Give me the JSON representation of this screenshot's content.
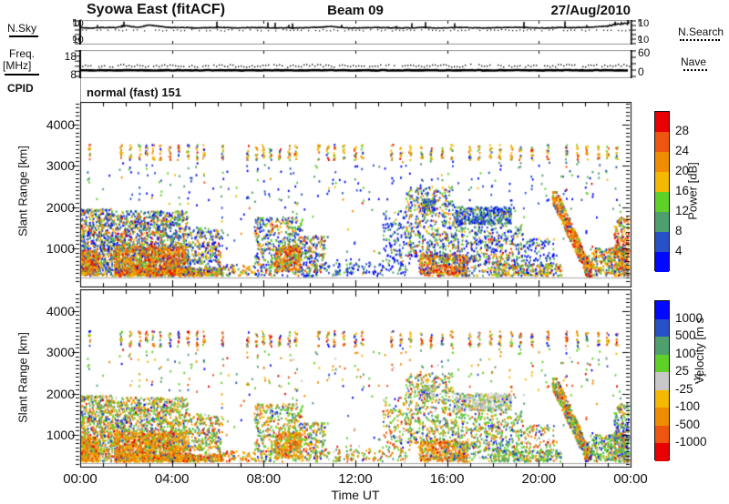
{
  "header": {
    "title": "Syowa East (fitACF)",
    "beam": "Beam 09",
    "date": "27/Aug/2010"
  },
  "left_labels": {
    "noise": "N.Sky",
    "freq_line1": "Freq.",
    "freq_line2": "[MHz]",
    "cpid": "CPID"
  },
  "right_labels": {
    "noise": "N.Search",
    "freq": "Nave"
  },
  "cpid_value": "normal (fast) 151",
  "axes": {
    "x": {
      "label": "Time UT",
      "major_hours": [
        0,
        4,
        8,
        12,
        16,
        20,
        24
      ],
      "major_labels": [
        "00:00",
        "04:00",
        "08:00",
        "12:00",
        "16:00",
        "20:00",
        "00:00"
      ],
      "minor_step_hours": 1
    },
    "range": {
      "label": "Slant Range [km]",
      "ticks": [
        1000,
        2000,
        3000,
        4000
      ],
      "tick_labels": [
        "1000",
        "2000",
        "3000",
        "4000"
      ],
      "min": 230,
      "max": 4540,
      "minor_step": 100
    },
    "noise_y": {
      "base": "10",
      "exp_top": "5",
      "exp_bottom": "0"
    },
    "freq_y": {
      "left_top": "18",
      "left_bottom": "8",
      "right_top": "60",
      "right_bottom": "0"
    }
  },
  "colorbars": {
    "power": {
      "title": "Power [dB]",
      "colors_top_to_bottom": [
        "#e80000",
        "#ee5511",
        "#f08c00",
        "#f5b800",
        "#5fd028",
        "#4f9e6e",
        "#2850c8",
        "#0008ff"
      ],
      "boundary_labels": [
        "28",
        "24",
        "20",
        "16",
        "12",
        "8",
        "4"
      ]
    },
    "velocity": {
      "title_prefix": "Velocity [m s",
      "title_sup": "-1",
      "title_suffix": "]",
      "colors_top_to_bottom": [
        "#0008ff",
        "#2850c8",
        "#4f9e6e",
        "#5fd028",
        "#c8c8c8",
        "#f5b800",
        "#f08c00",
        "#ee5511",
        "#e80000"
      ],
      "boundary_labels": [
        "1000",
        "500",
        "100",
        "25",
        "-25",
        "-100",
        "-500",
        "-1000"
      ]
    }
  },
  "chart_data": [
    {
      "id": "nsky",
      "type": "line",
      "panel": "noise",
      "label": "N.Sky",
      "style": "solid",
      "y_log10_range": [
        0,
        5
      ],
      "x_hours_step": 0.5,
      "values": [
        3.5,
        3.45,
        3.55,
        3.5,
        3.9,
        3.55,
        4.1,
        3.75,
        3.5,
        3.55,
        3.45,
        3.5,
        3.6,
        3.5,
        3.45,
        3.55,
        3.5,
        3.45,
        3.5,
        3.45,
        3.55,
        3.6,
        3.8,
        3.5,
        3.45,
        3.5,
        3.55,
        3.5,
        3.45,
        3.5,
        3.55,
        3.45,
        3.5,
        3.55,
        3.5,
        3.45,
        3.5,
        3.55,
        3.6,
        3.5,
        3.45,
        3.5,
        3.55,
        3.5,
        3.6,
        3.7,
        3.9,
        4.35,
        4.6
      ]
    },
    {
      "id": "nsearch",
      "type": "line",
      "panel": "noise",
      "label": "N.Search",
      "style": "dotted",
      "y_log10_range": [
        0,
        5
      ],
      "level": 3.05
    },
    {
      "id": "freq",
      "type": "line",
      "panel": "freq",
      "label": "Freq. [MHz]",
      "style": "solid",
      "y_range": [
        8,
        18
      ],
      "level": 10.4
    },
    {
      "id": "nave",
      "type": "line",
      "panel": "freq",
      "label": "Nave",
      "style": "dotted",
      "y_range": [
        0,
        60
      ],
      "x_hours_step": 0.5,
      "values": [
        26,
        27,
        25,
        26,
        28,
        26,
        25,
        27,
        26,
        26,
        25,
        28,
        26,
        27,
        25,
        26,
        26,
        27,
        25,
        26,
        28,
        26,
        25,
        27,
        26,
        25,
        27,
        26,
        28,
        25,
        26,
        27,
        26,
        25,
        28,
        26,
        27,
        25,
        26,
        26,
        27,
        25,
        28,
        26,
        25,
        27,
        26,
        28,
        26
      ]
    },
    {
      "id": "power",
      "type": "scatter",
      "panel": "power",
      "title": "Power [dB]",
      "x_range_hours": [
        0,
        24
      ],
      "range_km": [
        230,
        4540
      ],
      "thresholds": [
        4,
        8,
        12,
        16,
        20,
        24,
        28
      ],
      "palette_low_to_high": [
        "#0008ff",
        "#2850c8",
        "#4f9e6e",
        "#5fd028",
        "#f5b800",
        "#f08c00",
        "#ee5511",
        "#e80000"
      ],
      "weight_presets": {
        "pmix": [
          0.16,
          0.18,
          0.2,
          0.14,
          0.12,
          0.1,
          0.06,
          0.04
        ],
        "pcold": [
          0.3,
          0.35,
          0.2,
          0.1,
          0.03,
          0.02,
          0.0,
          0.0
        ],
        "phot": [
          0.02,
          0.05,
          0.07,
          0.09,
          0.18,
          0.24,
          0.21,
          0.14
        ],
        "pwarm": [
          0.06,
          0.09,
          0.13,
          0.15,
          0.24,
          0.19,
          0.09,
          0.05
        ],
        "pstrip": [
          0.05,
          0.08,
          0.06,
          0.1,
          0.36,
          0.2,
          0.09,
          0.06
        ],
        "pspeck": [
          0.3,
          0.28,
          0.2,
          0.12,
          0.05,
          0.03,
          0.01,
          0.01
        ]
      },
      "regions": [
        {
          "t": [
            0.0,
            1.4
          ],
          "r": [
            330,
            1950
          ],
          "n": 650,
          "pw": "pmix",
          "vw": "vmix"
        },
        {
          "t": [
            0.0,
            0.8
          ],
          "r": [
            330,
            950
          ],
          "n": 280,
          "pw": "phot",
          "vw": "vneg"
        },
        {
          "t": [
            1.4,
            4.7
          ],
          "r": [
            330,
            1900
          ],
          "n": 1350,
          "pw": "pmix",
          "vw": "vmix"
        },
        {
          "t": [
            1.5,
            4.6
          ],
          "r": [
            330,
            1050
          ],
          "n": 850,
          "pw": "phot",
          "vw": "vneg"
        },
        {
          "t": [
            1.5,
            4.8
          ],
          "r": [
            330,
            520
          ],
          "n": 420,
          "pw": "phot",
          "vw": "vneg"
        },
        {
          "t": [
            4.7,
            6.2
          ],
          "r": [
            330,
            1500
          ],
          "n": 300,
          "pw": "pmix",
          "vw": "vmix"
        },
        {
          "t": [
            4.7,
            6.2
          ],
          "r": [
            330,
            520
          ],
          "n": 160,
          "pw": "pwarm",
          "vw": "vneg"
        },
        {
          "t": [
            6.2,
            7.6
          ],
          "r": [
            330,
            600
          ],
          "n": 60,
          "pw": "pwarm",
          "vw": "vneg"
        },
        {
          "t": [
            7.6,
            9.7
          ],
          "r": [
            330,
            1750
          ],
          "n": 480,
          "pw": "pmix",
          "vw": "vmix"
        },
        {
          "t": [
            8.5,
            9.6
          ],
          "r": [
            430,
            1050
          ],
          "n": 260,
          "pw": "phot",
          "vw": "vneg"
        },
        {
          "t": [
            9.7,
            10.7
          ],
          "r": [
            330,
            1300
          ],
          "n": 200,
          "pw": "pmix",
          "vw": "vmix"
        },
        {
          "t": [
            10.7,
            13.2
          ],
          "r": [
            330,
            650
          ],
          "n": 90,
          "pw": "pspeck",
          "vw": "vspeck"
        },
        {
          "t": [
            13.2,
            14.2
          ],
          "r": [
            350,
            1900
          ],
          "n": 110,
          "pw": "pcold",
          "vw": "vspeck"
        },
        {
          "t": [
            14.2,
            16.3
          ],
          "r": [
            800,
            2500
          ],
          "n": 420,
          "pw": "pmix",
          "vw": "vmix"
        },
        {
          "t": [
            14.8,
            16.9
          ],
          "r": [
            330,
            850
          ],
          "n": 430,
          "pw": "phot",
          "vw": "vneg"
        },
        {
          "t": [
            16.3,
            18.8
          ],
          "r": [
            1580,
            2000
          ],
          "n": 400,
          "pw": "pcold",
          "vw": "vgrey"
        },
        {
          "t": [
            14.9,
            15.5
          ],
          "r": [
            1900,
            2180
          ],
          "n": 70,
          "pw": "pcold",
          "vw": "vgrey"
        },
        {
          "t": [
            16.3,
            19.3
          ],
          "r": [
            330,
            1550
          ],
          "n": 400,
          "pw": "pmix",
          "vw": "vpos"
        },
        {
          "t": [
            18.0,
            21.0
          ],
          "r": [
            330,
            620
          ],
          "n": 220,
          "pw": "pwarm",
          "vw": "vpos"
        },
        {
          "t": [
            19.3,
            20.7
          ],
          "r": [
            330,
            1250
          ],
          "n": 110,
          "pw": "pspeck",
          "vw": "vspeck"
        },
        {
          "t": [
            20.6,
            22.3
          ],
          "r": [
            330,
            2350
          ],
          "n": 520,
          "pw": "phot",
          "vw": "vdiag",
          "diag": true,
          "spread": 260
        },
        {
          "t": [
            22.3,
            24.0
          ],
          "r": [
            330,
            1000
          ],
          "n": 300,
          "pw": "pwarm",
          "vw": "vpos"
        },
        {
          "t": [
            23.3,
            24.0
          ],
          "r": [
            330,
            1750
          ],
          "n": 260,
          "pw": "phot",
          "vw": "vcold"
        },
        {
          "t": [
            0.0,
            24.0
          ],
          "r": [
            350,
            3050
          ],
          "n": 260,
          "pw": "pspeck",
          "vw": "vspeck"
        },
        {
          "t": [
            13.5,
            18.5
          ],
          "r": [
            600,
            1600
          ],
          "n": 150,
          "pw": "pcold",
          "vw": "vspeck"
        }
      ],
      "far_range_strips": {
        "times": [
          0.4,
          1.8,
          2.2,
          2.6,
          2.9,
          3.2,
          3.5,
          3.9,
          4.3,
          4.7,
          5.1,
          5.4,
          6.2,
          7.3,
          7.7,
          8.0,
          8.3,
          8.7,
          9.1,
          9.4,
          10.4,
          10.8,
          11.1,
          11.5,
          12.0,
          12.3,
          13.6,
          14.0,
          14.4,
          14.9,
          15.3,
          15.8,
          16.2,
          17.0,
          17.4,
          17.9,
          18.3,
          18.8,
          19.2,
          19.7,
          20.4,
          21.2,
          21.7,
          22.1,
          22.6,
          23.0,
          23.4
        ],
        "r": [
          3130,
          3500
        ],
        "n": 11,
        "half_width_h": 0.05,
        "tail_n": 3,
        "tail_r": [
          2050,
          3100
        ],
        "pw": "pstrip",
        "vw": "vstrip"
      }
    },
    {
      "id": "velocity",
      "type": "scatter",
      "panel": "velocity",
      "title_unit": "m s-1",
      "x_range_hours": [
        0,
        24
      ],
      "range_km": [
        230,
        4540
      ],
      "thresholds": [
        -1000,
        -500,
        -100,
        -25,
        25,
        100,
        500,
        1000
      ],
      "palette_neg_to_pos": [
        "#e80000",
        "#ee5511",
        "#f08c00",
        "#f5b800",
        "#c8c8c8",
        "#5fd028",
        "#4f9e6e",
        "#2850c8",
        "#0008ff"
      ],
      "regions_ref": "power",
      "weight_presets": {
        "vmix": [
          0.03,
          0.08,
          0.2,
          0.12,
          0.06,
          0.25,
          0.15,
          0.08,
          0.03
        ],
        "vneg": [
          0.08,
          0.15,
          0.38,
          0.2,
          0.04,
          0.08,
          0.04,
          0.02,
          0.01
        ],
        "vpos": [
          0.01,
          0.03,
          0.08,
          0.08,
          0.06,
          0.34,
          0.24,
          0.11,
          0.05
        ],
        "vgrey": [
          0.01,
          0.03,
          0.06,
          0.1,
          0.55,
          0.12,
          0.08,
          0.03,
          0.02
        ],
        "vstrip": [
          0.12,
          0.15,
          0.24,
          0.14,
          0.02,
          0.1,
          0.06,
          0.09,
          0.08
        ],
        "vspeck": [
          0.05,
          0.1,
          0.2,
          0.1,
          0.05,
          0.25,
          0.15,
          0.06,
          0.04
        ],
        "vdiag": [
          0.04,
          0.1,
          0.25,
          0.1,
          0.02,
          0.22,
          0.12,
          0.1,
          0.05
        ],
        "vcold": [
          0.02,
          0.04,
          0.1,
          0.06,
          0.04,
          0.3,
          0.2,
          0.14,
          0.1
        ]
      }
    }
  ]
}
